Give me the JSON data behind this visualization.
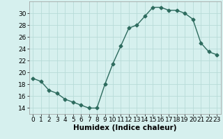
{
  "x": [
    0,
    1,
    2,
    3,
    4,
    5,
    6,
    7,
    8,
    9,
    10,
    11,
    12,
    13,
    14,
    15,
    16,
    17,
    18,
    19,
    20,
    21,
    22,
    23
  ],
  "y": [
    19,
    18.5,
    17,
    16.5,
    15.5,
    15,
    14.5,
    14,
    14,
    18,
    21.5,
    24.5,
    27.5,
    28,
    29.5,
    31,
    31,
    30.5,
    30.5,
    30,
    29,
    25,
    23.5,
    23
  ],
  "line_color": "#2d6b5e",
  "marker": "D",
  "marker_size": 2.5,
  "bg_color": "#d6f0ee",
  "grid_color": "#b8dbd8",
  "xlabel": "Humidex (Indice chaleur)",
  "xlim": [
    -0.5,
    23.5
  ],
  "ylim": [
    13,
    32
  ],
  "yticks": [
    14,
    16,
    18,
    20,
    22,
    24,
    26,
    28,
    30
  ],
  "xticks": [
    0,
    1,
    2,
    3,
    4,
    5,
    6,
    7,
    8,
    9,
    10,
    11,
    12,
    13,
    14,
    15,
    16,
    17,
    18,
    19,
    20,
    21,
    22,
    23
  ],
  "xlabel_fontsize": 7.5,
  "tick_fontsize": 6.5
}
